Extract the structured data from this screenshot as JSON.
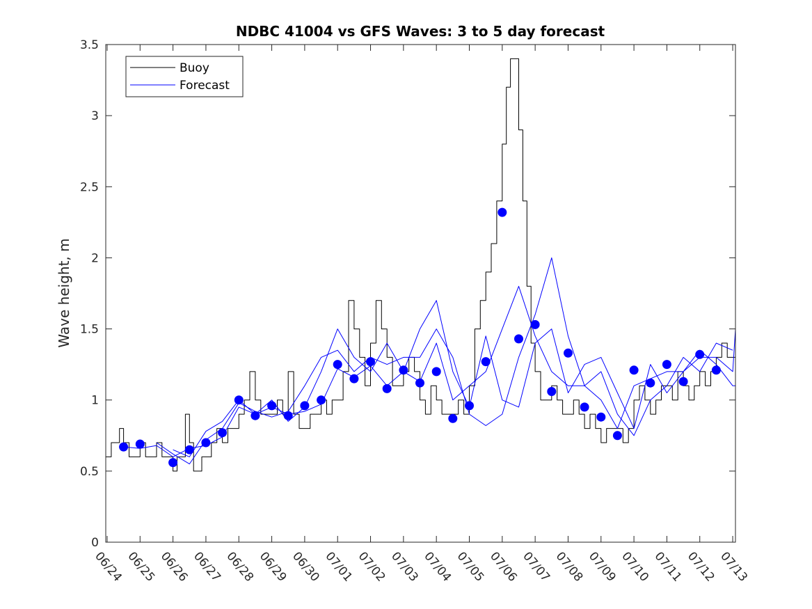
{
  "chart_data": {
    "type": "line",
    "title": "NDBC 41004 vs GFS Waves: 3 to 5 day forecast",
    "xlabel": "",
    "ylabel": "Wave height, m",
    "ylim": [
      0,
      3.5
    ],
    "yticks": [
      0,
      0.5,
      1,
      1.5,
      2,
      2.5,
      3,
      3.5
    ],
    "ytick_labels": [
      "0",
      "0.5",
      "1",
      "1.5",
      "2",
      "2.5",
      "3",
      "3.5"
    ],
    "xlim": [
      "06/23 23:00",
      "07/13 02:00"
    ],
    "xtick_labels": [
      "06/24",
      "06/25",
      "06/26",
      "06/27",
      "06/28",
      "06/29",
      "06/30",
      "07/01",
      "07/02",
      "07/03",
      "07/04",
      "07/05",
      "07/06",
      "07/07",
      "07/08",
      "07/09",
      "07/10",
      "07/11",
      "07/12",
      "07/13"
    ],
    "grid": false,
    "legend": {
      "position": "top-left",
      "entries": [
        "Buoy",
        "Forecast"
      ]
    },
    "colors": {
      "buoy": "#000000",
      "forecast": "#0000ff",
      "marker": "#0000ff"
    },
    "series": [
      {
        "name": "Buoy",
        "x": [
          "06/23 23:00",
          "06/24 03:00",
          "06/24 06:00",
          "06/24 09:00",
          "06/24 12:00",
          "06/24 16:00",
          "06/24 20:00",
          "06/25 00:00",
          "06/25 04:00",
          "06/25 08:00",
          "06/25 12:00",
          "06/25 16:00",
          "06/25 20:00",
          "06/26 00:00",
          "06/26 03:00",
          "06/26 06:00",
          "06/26 09:00",
          "06/26 12:00",
          "06/26 15:00",
          "06/26 18:00",
          "06/26 21:00",
          "06/27 00:00",
          "06/27 04:00",
          "06/27 08:00",
          "06/27 12:00",
          "06/27 16:00",
          "06/27 20:00",
          "06/28 00:00",
          "06/28 04:00",
          "06/28 08:00",
          "06/28 12:00",
          "06/28 16:00",
          "06/28 20:00",
          "06/29 00:00",
          "06/29 04:00",
          "06/29 08:00",
          "06/29 12:00",
          "06/29 16:00",
          "06/29 20:00",
          "06/30 00:00",
          "06/30 04:00",
          "06/30 08:00",
          "06/30 12:00",
          "06/30 16:00",
          "06/30 20:00",
          "07/01 00:00",
          "07/01 04:00",
          "07/01 08:00",
          "07/01 12:00",
          "07/01 16:00",
          "07/01 20:00",
          "07/02 00:00",
          "07/02 04:00",
          "07/02 08:00",
          "07/02 12:00",
          "07/02 16:00",
          "07/02 20:00",
          "07/03 00:00",
          "07/03 04:00",
          "07/03 08:00",
          "07/03 12:00",
          "07/03 16:00",
          "07/03 20:00",
          "07/04 00:00",
          "07/04 04:00",
          "07/04 08:00",
          "07/04 12:00",
          "07/04 16:00",
          "07/04 20:00",
          "07/05 00:00",
          "07/05 04:00",
          "07/05 08:00",
          "07/05 12:00",
          "07/05 16:00",
          "07/05 20:00",
          "07/06 00:00",
          "07/06 03:00",
          "07/06 06:00",
          "07/06 09:00",
          "07/06 12:00",
          "07/06 15:00",
          "07/06 18:00",
          "07/06 21:00",
          "07/07 00:00",
          "07/07 04:00",
          "07/07 08:00",
          "07/07 12:00",
          "07/07 16:00",
          "07/07 20:00",
          "07/08 00:00",
          "07/08 04:00",
          "07/08 08:00",
          "07/08 12:00",
          "07/08 16:00",
          "07/08 20:00",
          "07/09 00:00",
          "07/09 04:00",
          "07/09 08:00",
          "07/09 12:00",
          "07/09 16:00",
          "07/09 20:00",
          "07/10 00:00",
          "07/10 04:00",
          "07/10 08:00",
          "07/10 12:00",
          "07/10 16:00",
          "07/10 20:00",
          "07/11 00:00",
          "07/11 04:00",
          "07/11 08:00",
          "07/11 12:00",
          "07/11 16:00",
          "07/11 20:00",
          "07/12 00:00",
          "07/12 04:00",
          "07/12 08:00",
          "07/12 12:00",
          "07/12 16:00",
          "07/12 20:00",
          "07/13 00:00",
          "07/13 02:00"
        ],
        "y": [
          0.6,
          0.7,
          0.7,
          0.8,
          0.7,
          0.6,
          0.6,
          0.7,
          0.6,
          0.6,
          0.7,
          0.6,
          0.6,
          0.5,
          0.6,
          0.6,
          0.9,
          0.7,
          0.5,
          0.5,
          0.6,
          0.6,
          0.7,
          0.8,
          0.7,
          0.8,
          0.8,
          0.9,
          1.0,
          1.2,
          1.0,
          0.9,
          0.9,
          0.9,
          1.0,
          0.9,
          1.2,
          0.9,
          0.8,
          0.8,
          0.9,
          0.9,
          1.0,
          0.9,
          1.0,
          1.0,
          1.2,
          1.7,
          1.5,
          1.3,
          1.1,
          1.4,
          1.7,
          1.5,
          1.3,
          1.1,
          1.1,
          1.2,
          1.3,
          1.2,
          1.0,
          0.9,
          1.1,
          1.0,
          0.9,
          0.9,
          0.9,
          1.0,
          0.9,
          1.1,
          1.5,
          1.7,
          1.9,
          2.1,
          2.4,
          2.8,
          3.2,
          3.4,
          3.4,
          2.9,
          2.4,
          1.8,
          1.4,
          1.2,
          1.0,
          1.0,
          1.1,
          1.0,
          0.9,
          0.9,
          1.0,
          0.9,
          0.8,
          0.9,
          0.8,
          0.7,
          0.8,
          0.8,
          0.8,
          0.7,
          0.8,
          1.0,
          1.1,
          1.0,
          0.9,
          1.0,
          1.1,
          1.1,
          1.0,
          1.2,
          1.1,
          1.0,
          1.1,
          1.2,
          1.1,
          1.2,
          1.3,
          1.4,
          1.3,
          1.3,
          1.2
        ]
      },
      {
        "name": "Forecast",
        "x": [
          "06/24 12:00",
          "06/25 00:00",
          "06/25 12:00",
          "06/26 00:00",
          "06/26 12:00",
          "06/27 00:00",
          "06/27 12:00",
          "06/28 00:00",
          "06/28 12:00",
          "06/29 00:00",
          "06/29 12:00",
          "06/30 00:00",
          "06/30 12:00",
          "07/01 00:00",
          "07/01 12:00",
          "07/02 00:00",
          "07/02 12:00",
          "07/03 00:00",
          "07/03 12:00",
          "07/04 00:00",
          "07/04 12:00",
          "07/05 00:00",
          "07/05 12:00",
          "07/06 00:00",
          "07/06 12:00",
          "07/07 00:00",
          "07/07 12:00",
          "07/08 00:00",
          "07/08 12:00",
          "07/09 00:00",
          "07/09 12:00",
          "07/10 00:00",
          "07/10 12:00",
          "07/11 00:00",
          "07/11 12:00",
          "07/12 00:00",
          "07/12 12:00",
          "07/13 00:00",
          "07/13 02:00"
        ],
        "y": [
          0.67,
          0.66,
          0.68,
          0.6,
          0.66,
          0.68,
          0.74,
          0.95,
          0.9,
          0.95,
          0.9,
          0.92,
          0.97,
          1.22,
          1.16,
          1.24,
          1.1,
          1.2,
          1.13,
          1.4,
          1.0,
          1.1,
          1.2,
          1.5,
          1.8,
          1.45,
          1.2,
          1.1,
          1.1,
          1.0,
          0.8,
          1.1,
          1.15,
          1.2,
          1.2,
          1.3,
          1.3,
          1.2,
          1.5
        ]
      },
      {
        "name": "",
        "x": [
          "06/25 12:00",
          "06/26 00:00",
          "06/26 12:00",
          "06/27 00:00",
          "06/27 12:00",
          "06/28 00:00",
          "06/28 12:00",
          "06/29 00:00",
          "06/29 12:00",
          "06/30 00:00",
          "06/30 12:00",
          "07/01 00:00",
          "07/01 12:00",
          "07/02 00:00",
          "07/02 12:00",
          "07/03 00:00",
          "07/03 12:00",
          "07/04 00:00",
          "07/04 12:00",
          "07/05 00:00",
          "07/05 12:00",
          "07/06 00:00",
          "07/06 12:00",
          "07/07 00:00",
          "07/07 12:00",
          "07/08 00:00",
          "07/08 12:00",
          "07/09 00:00",
          "07/09 12:00",
          "07/10 00:00",
          "07/10 12:00",
          "07/11 00:00",
          "07/11 12:00",
          "07/12 00:00",
          "07/12 12:00",
          "07/13 00:00"
        ],
        "y": [
          0.7,
          0.62,
          0.55,
          0.72,
          0.8,
          0.98,
          0.92,
          0.88,
          0.92,
          1.1,
          1.3,
          1.35,
          1.2,
          1.3,
          1.25,
          1.3,
          1.3,
          1.5,
          1.3,
          0.9,
          0.82,
          0.9,
          1.3,
          1.6,
          2.0,
          1.45,
          1.1,
          1.2,
          0.9,
          0.75,
          1.0,
          1.1,
          1.3,
          1.2,
          1.4,
          1.35
        ]
      },
      {
        "name": "",
        "x": [
          "06/26 00:00",
          "06/26 12:00",
          "06/27 00:00",
          "06/27 12:00",
          "06/28 00:00",
          "06/28 12:00",
          "06/29 00:00",
          "06/29 12:00",
          "06/30 00:00",
          "06/30 12:00",
          "07/01 00:00",
          "07/01 12:00",
          "07/02 00:00",
          "07/02 12:00",
          "07/03 00:00",
          "07/03 12:00",
          "07/04 00:00",
          "07/04 12:00",
          "07/05 00:00",
          "07/05 12:00",
          "07/06 00:00",
          "07/06 12:00",
          "07/07 00:00",
          "07/07 12:00",
          "07/08 00:00",
          "07/08 12:00",
          "07/09 00:00",
          "07/09 12:00",
          "07/10 00:00",
          "07/10 12:00",
          "07/11 00:00",
          "07/11 12:00",
          "07/12 00:00",
          "07/12 12:00",
          "07/13 00:00",
          "07/13 02:00"
        ],
        "y": [
          0.65,
          0.6,
          0.78,
          0.85,
          1.0,
          0.9,
          1.0,
          0.85,
          0.95,
          1.2,
          1.5,
          1.3,
          1.2,
          1.4,
          1.2,
          1.5,
          1.7,
          1.2,
          0.95,
          1.45,
          1.0,
          0.95,
          1.4,
          1.5,
          1.05,
          1.25,
          1.3,
          1.05,
          0.8,
          1.25,
          1.05,
          1.2,
          1.35,
          1.25,
          1.1,
          1.1
        ]
      }
    ],
    "markers": {
      "x": [
        "06/24 12:00",
        "06/25 00:00",
        "06/26 00:00",
        "06/26 12:00",
        "06/27 00:00",
        "06/27 12:00",
        "06/28 00:00",
        "06/28 12:00",
        "06/29 00:00",
        "06/29 12:00",
        "06/30 00:00",
        "06/30 12:00",
        "07/01 00:00",
        "07/01 12:00",
        "07/02 00:00",
        "07/02 12:00",
        "07/03 00:00",
        "07/03 12:00",
        "07/04 00:00",
        "07/04 12:00",
        "07/05 00:00",
        "07/05 12:00",
        "07/06 00:00",
        "07/06 12:00",
        "07/07 00:00",
        "07/07 12:00",
        "07/08 00:00",
        "07/08 12:00",
        "07/09 00:00",
        "07/09 12:00",
        "07/10 00:00",
        "07/10 12:00",
        "07/11 00:00",
        "07/11 12:00",
        "07/12 00:00",
        "07/12 12:00"
      ],
      "y": [
        0.67,
        0.69,
        0.56,
        0.65,
        0.7,
        0.77,
        1.0,
        0.89,
        0.96,
        0.89,
        0.96,
        1.0,
        1.25,
        1.15,
        1.27,
        1.08,
        1.21,
        1.12,
        1.2,
        0.87,
        0.96,
        1.27,
        2.32,
        1.43,
        1.53,
        1.06,
        1.33,
        0.95,
        0.88,
        0.75,
        1.21,
        1.12,
        1.25,
        1.13,
        1.32,
        1.21
      ]
    }
  }
}
